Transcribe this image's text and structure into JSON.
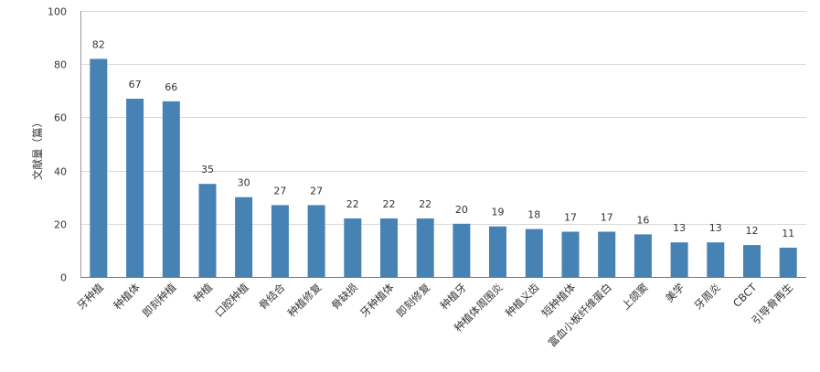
{
  "chart_data": {
    "type": "bar",
    "title": "",
    "xlabel": "",
    "ylabel": "文献量（篇）",
    "ylim": [
      0,
      100
    ],
    "yticks": [
      0,
      20,
      40,
      60,
      80,
      100
    ],
    "grid": true,
    "bar_color": "#4682b4",
    "categories": [
      "牙种植",
      "种植体",
      "即刻种植",
      "种植",
      "口腔种植",
      "骨结合",
      "种植修复",
      "骨缺损",
      "牙种植体",
      "即刻修复",
      "种植牙",
      "种植体周围炎",
      "种植义齿",
      "短种植体",
      "富血小板纤维蛋白",
      "上颌窦",
      "美学",
      "牙周炎",
      "CBCT",
      "引导骨再生"
    ],
    "values": [
      82,
      67,
      66,
      35,
      30,
      27,
      27,
      22,
      22,
      22,
      20,
      19,
      18,
      17,
      17,
      16,
      13,
      13,
      12,
      11
    ]
  }
}
